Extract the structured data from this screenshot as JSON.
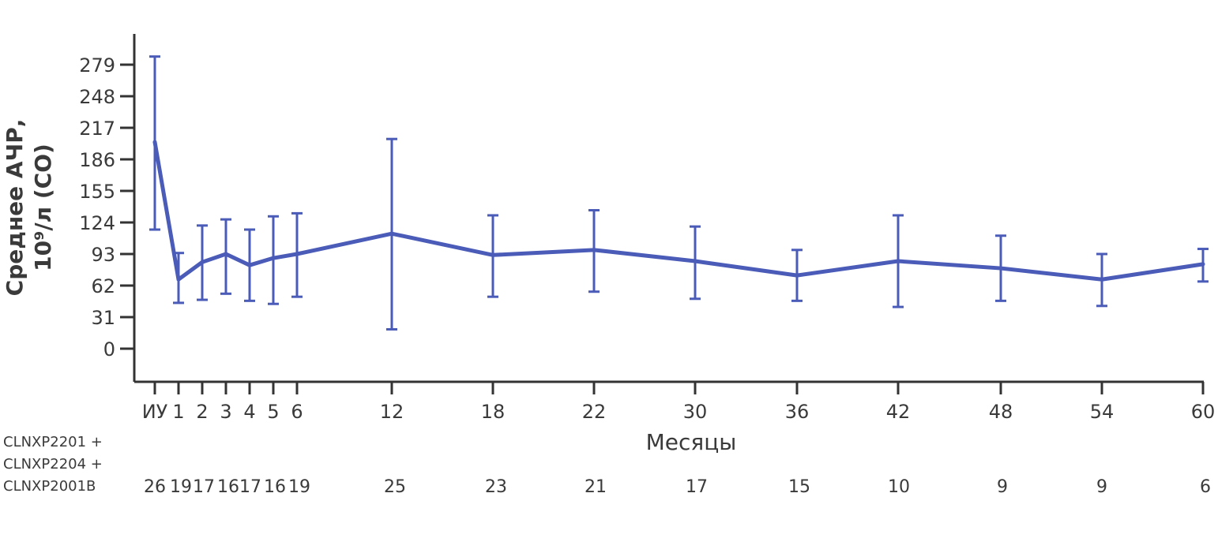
{
  "chart_data": {
    "type": "line",
    "xlabel": "Месяцы",
    "ylabel_line1": "Среднее АЧР,",
    "ylabel_line2": "10⁹/л (СО)",
    "y_ticks": [
      0,
      31,
      62,
      93,
      124,
      155,
      186,
      217,
      248,
      279
    ],
    "ylim": [
      -32,
      310
    ],
    "categories": [
      "ИУ",
      "1",
      "2",
      "3",
      "4",
      "5",
      "6",
      "12",
      "18",
      "22",
      "30",
      "36",
      "42",
      "48",
      "54",
      "60"
    ],
    "series": [
      {
        "values": [
          203,
          68,
          85,
          93,
          82,
          89,
          93,
          113,
          92,
          97,
          86,
          72,
          86,
          79,
          68,
          83
        ],
        "lower": [
          117,
          45,
          48,
          54,
          47,
          44,
          51,
          19,
          51,
          56,
          49,
          47,
          41,
          47,
          42,
          66
        ],
        "upper": [
          287,
          94,
          121,
          127,
          117,
          130,
          133,
          206,
          131,
          136,
          120,
          97,
          131,
          111,
          93,
          98
        ]
      }
    ],
    "line_color": "#4a5bb8",
    "grid": false,
    "risk_table": {
      "label_lines": [
        "CLNXP2201 +",
        "CLNXP2204 +",
        "CLNXP2001B"
      ],
      "counts": [
        "26",
        "19",
        "17",
        "16",
        "17",
        "16",
        "19",
        "25",
        "23",
        "21",
        "17",
        "15",
        "10",
        "9",
        "9",
        "6"
      ]
    }
  }
}
